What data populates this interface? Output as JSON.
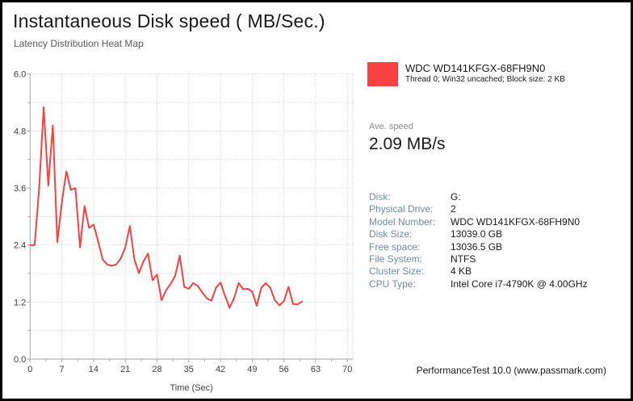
{
  "header": {
    "title": "Instantaneous Disk speed ( MB/Sec.)",
    "subtitle": "Latency Distribution Heat Map"
  },
  "legend": {
    "swatch_color": "#f94141",
    "device": "WDC WD141KFGX-68FH9N0",
    "details": "Thread 0; Win32 uncached; Block size: 2 KB"
  },
  "average": {
    "label": "Ave. speed",
    "value": "2.09 MB/s"
  },
  "info": {
    "rows": [
      {
        "label": "Disk:",
        "value": "G:"
      },
      {
        "label": "Physical Drive:",
        "value": "2"
      },
      {
        "label": "Model Number:",
        "value": "WDC WD141KFGX-68FH9N0"
      },
      {
        "label": "Disk Size:",
        "value": "13039.0 GB"
      },
      {
        "label": "Free space:",
        "value": "13036.5 GB"
      },
      {
        "label": "File System:",
        "value": "NTFS"
      },
      {
        "label": "Cluster Size:",
        "value": "4 KB"
      },
      {
        "label": "CPU Type:",
        "value": "Intel Core i7-4790K @ 4.00GHz"
      }
    ]
  },
  "footer": {
    "text": "PerformanceTest 10.0 (www.passmark.com)"
  },
  "chart_data": {
    "type": "line",
    "title": "Instantaneous Disk speed ( MB/Sec.)",
    "xlabel": "Time (Sec)",
    "ylabel": "",
    "xlim": [
      0,
      71.2
    ],
    "ylim": [
      0,
      6.0
    ],
    "x_ticks": [
      0,
      7,
      14,
      21,
      28,
      35,
      42,
      49,
      56,
      63,
      70
    ],
    "y_ticks": [
      0.0,
      1.2,
      2.4,
      3.6,
      4.8,
      6.0
    ],
    "x_minor_step": 3.5,
    "y_minor_step": 0.6,
    "grid": "dotted",
    "grid_color": "#c8c8c8",
    "axis_color": "#a6a6a6",
    "tick_label_color": "#3f3f3f",
    "line_color": "#f94141",
    "series": [
      {
        "name": "WDC WD141KFGX-68FH9N0",
        "x": [
          0,
          1,
          2,
          3,
          4,
          5,
          6,
          7,
          8,
          9,
          10,
          11,
          12,
          13,
          14,
          15,
          16,
          17,
          18,
          19,
          20,
          21,
          22,
          23,
          24,
          25,
          26,
          27,
          28,
          29,
          30,
          31,
          32,
          33,
          34,
          35,
          36,
          37,
          38,
          39,
          40,
          41,
          42,
          43,
          44,
          45,
          46,
          47,
          48,
          49,
          50,
          51,
          52,
          53,
          54,
          55,
          56,
          57,
          58,
          59,
          60
        ],
        "y": [
          2.4,
          2.4,
          3.6,
          5.3,
          3.65,
          4.92,
          2.46,
          3.3,
          3.95,
          3.56,
          3.6,
          2.35,
          3.22,
          2.76,
          2.83,
          2.48,
          2.1,
          1.99,
          1.96,
          1.99,
          2.12,
          2.35,
          2.8,
          2.1,
          1.81,
          2.05,
          2.22,
          1.66,
          1.78,
          1.24,
          1.45,
          1.58,
          1.75,
          2.18,
          1.52,
          1.48,
          1.6,
          1.54,
          1.4,
          1.28,
          1.23,
          1.5,
          1.61,
          1.33,
          1.08,
          1.28,
          1.6,
          1.47,
          1.48,
          1.42,
          1.12,
          1.5,
          1.6,
          1.5,
          1.24,
          1.13,
          1.22,
          1.52,
          1.16,
          1.15,
          1.21
        ]
      }
    ]
  }
}
